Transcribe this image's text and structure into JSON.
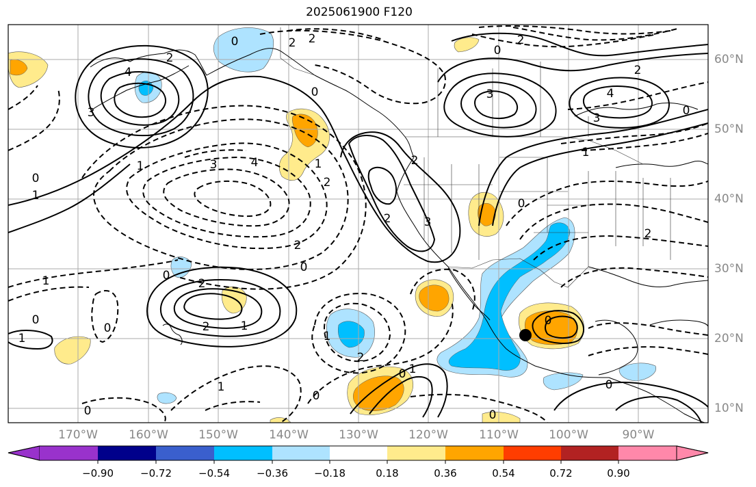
{
  "title": "2025061900 F120",
  "map": {
    "lat_labels": [
      "60°N",
      "50°N",
      "40°N",
      "30°N",
      "20°N",
      "10°N"
    ],
    "lon_labels": [
      "170°W",
      "160°W",
      "150°W",
      "140°W",
      "130°W",
      "120°W",
      "110°W",
      "100°W",
      "90°W"
    ],
    "marker": {
      "lat": 20.4,
      "lon": -105.0
    },
    "contour_labels": [
      {
        "text": "0"
      },
      {
        "text": "2"
      },
      {
        "text": "2"
      },
      {
        "text": "4"
      },
      {
        "text": "3"
      },
      {
        "text": "2"
      },
      {
        "text": "1"
      },
      {
        "text": "0"
      },
      {
        "text": "0"
      },
      {
        "text": "1"
      },
      {
        "text": "3"
      },
      {
        "text": "4"
      },
      {
        "text": "1"
      },
      {
        "text": "2"
      },
      {
        "text": "3"
      },
      {
        "text": "2"
      },
      {
        "text": "2"
      },
      {
        "text": "0"
      },
      {
        "text": "3"
      },
      {
        "text": "4"
      },
      {
        "text": "3"
      },
      {
        "text": "2"
      },
      {
        "text": "0"
      },
      {
        "text": "2"
      },
      {
        "text": "1"
      },
      {
        "text": "0"
      },
      {
        "text": "2"
      },
      {
        "text": "1"
      },
      {
        "text": "0"
      },
      {
        "text": "0"
      },
      {
        "text": "1"
      },
      {
        "text": "0"
      },
      {
        "text": "2"
      },
      {
        "text": "1"
      },
      {
        "text": "2"
      },
      {
        "text": "1"
      },
      {
        "text": "0"
      },
      {
        "text": "1"
      },
      {
        "text": "0"
      },
      {
        "text": "0"
      },
      {
        "text": "0"
      },
      {
        "text": "0"
      },
      {
        "text": "2"
      },
      {
        "text": "0"
      },
      {
        "text": "2"
      },
      {
        "text": "1"
      },
      {
        "text": "0"
      }
    ]
  },
  "colorbar": {
    "colors": [
      "#9932cc",
      "#00008b",
      "#3a5fcd",
      "#00bfff",
      "#aee3ff",
      "#ffffff",
      "#ffeb8c",
      "#ffa500",
      "#ff3d00",
      "#b22222",
      "#ff88aa"
    ],
    "ticks": [
      "−0.90",
      "−0.72",
      "−0.54",
      "−0.36",
      "−0.18",
      "0.18",
      "0.36",
      "0.54",
      "0.72",
      "0.90"
    ]
  }
}
